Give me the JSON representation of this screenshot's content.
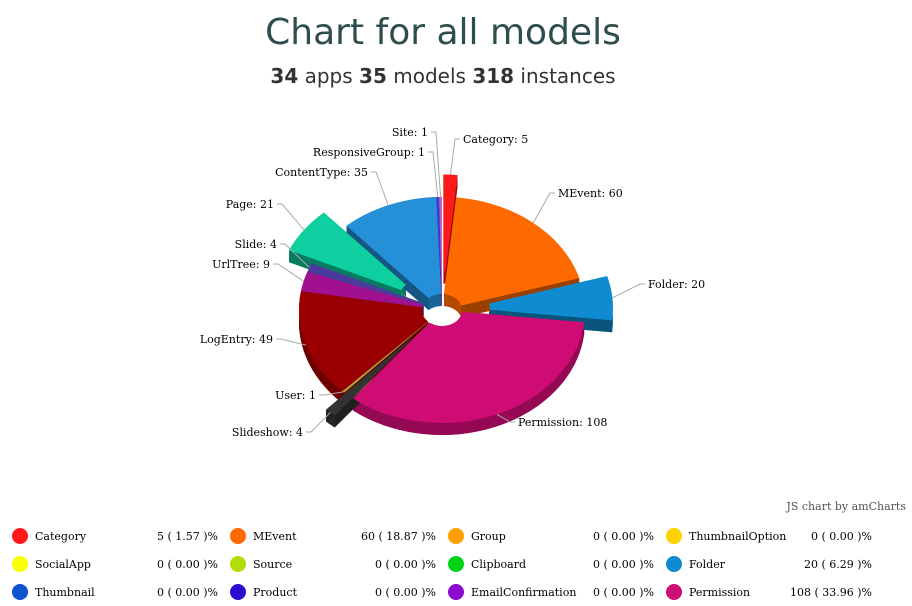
{
  "header": {
    "title": "Chart for all models",
    "apps_count": "34",
    "apps_label": "apps",
    "models_count": "35",
    "models_label": "models",
    "instances_count": "318",
    "instances_label": "instances"
  },
  "credit": "JS chart by amCharts",
  "chart_data": {
    "type": "pie",
    "title": "Chart for all models",
    "slices": [
      {
        "name": "Category",
        "value": 5,
        "color": "#ff1a1a",
        "label": "Category: 5",
        "pulled": true
      },
      {
        "name": "MEvent",
        "value": 60,
        "color": "#ff6a00",
        "label": "MEvent: 60",
        "pulled": false
      },
      {
        "name": "Folder",
        "value": 20,
        "color": "#0f8cd1",
        "label": "Folder: 20",
        "pulled": true
      },
      {
        "name": "Permission",
        "value": 108,
        "color": "#cf0c74",
        "label": "Permission: 108",
        "pulled": false
      },
      {
        "name": "Slideshow",
        "value": 4,
        "color": "#333333",
        "label": "Slideshow: 4",
        "pulled": true
      },
      {
        "name": "User",
        "value": 1,
        "color": "#b0a030",
        "label": "User: 1",
        "pulled": false
      },
      {
        "name": "LogEntry",
        "value": 49,
        "color": "#9a0000",
        "label": "LogEntry: 49",
        "pulled": false
      },
      {
        "name": "UrlTree",
        "value": 9,
        "color": "#a0108f",
        "label": "UrlTree: 9",
        "pulled": false
      },
      {
        "name": "Slide",
        "value": 4,
        "color": "#4a3b9c",
        "label": "Slide: 4",
        "pulled": false
      },
      {
        "name": "Page",
        "value": 21,
        "color": "#0dcfa0",
        "label": "Page: 21",
        "pulled": true
      },
      {
        "name": "ContentType",
        "value": 35,
        "color": "#2590d8",
        "label": "ContentType: 35",
        "pulled": false
      },
      {
        "name": "ResponsiveGroup",
        "value": 1,
        "color": "#3b3bd0",
        "label": "ResponsiveGroup: 1",
        "pulled": false
      },
      {
        "name": "Site",
        "value": 1,
        "color": "#c060c0",
        "label": "Site: 1",
        "pulled": false
      }
    ]
  },
  "legend": [
    {
      "name": "Category",
      "value": "5 ( 1.57 )%",
      "color": "#ff1a1a"
    },
    {
      "name": "MEvent",
      "value": "60 ( 18.87 )%",
      "color": "#ff6a00"
    },
    {
      "name": "Group",
      "value": "0 ( 0.00 )%",
      "color": "#ff9e01"
    },
    {
      "name": "ThumbnailOption",
      "value": "0 ( 0.00 )%",
      "color": "#fcd202"
    },
    {
      "name": "SocialApp",
      "value": "0 ( 0.00 )%",
      "color": "#f8ff01"
    },
    {
      "name": "Source",
      "value": "0 ( 0.00 )%",
      "color": "#b0de09"
    },
    {
      "name": "Clipboard",
      "value": "0 ( 0.00 )%",
      "color": "#04d215"
    },
    {
      "name": "Folder",
      "value": "20 ( 6.29 )%",
      "color": "#0f8cd1"
    },
    {
      "name": "Thumbnail",
      "value": "0 ( 0.00 )%",
      "color": "#0d52d1"
    },
    {
      "name": "Product",
      "value": "0 ( 0.00 )%",
      "color": "#2a0cd0"
    },
    {
      "name": "EmailConfirmation",
      "value": "0 ( 0.00 )%",
      "color": "#8a0ccf"
    },
    {
      "name": "Permission",
      "value": "108 ( 33.96 )%",
      "color": "#cd0d74"
    }
  ]
}
